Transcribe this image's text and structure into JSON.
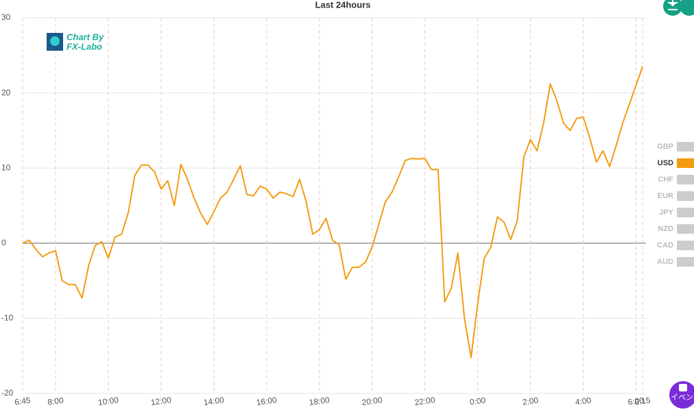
{
  "chart_data": {
    "type": "line",
    "title": "Last 24hours",
    "categories": [
      "6:45",
      null,
      null,
      null,
      null,
      "8:00",
      null,
      null,
      null,
      null,
      null,
      null,
      null,
      "10:00",
      null,
      null,
      null,
      null,
      null,
      null,
      null,
      "12:00",
      null,
      null,
      null,
      null,
      null,
      null,
      null,
      "14:00",
      null,
      null,
      null,
      null,
      null,
      null,
      null,
      "16:00",
      null,
      null,
      null,
      null,
      null,
      null,
      null,
      "18:00",
      null,
      null,
      null,
      null,
      null,
      null,
      null,
      "20:00",
      null,
      null,
      null,
      null,
      null,
      null,
      null,
      "22:00",
      null,
      null,
      null,
      null,
      null,
      null,
      null,
      "0:00",
      null,
      null,
      null,
      null,
      null,
      null,
      null,
      "2:00",
      null,
      null,
      null,
      null,
      null,
      null,
      null,
      "4:00",
      null,
      null,
      null,
      null,
      null,
      null,
      null,
      "6:00",
      "6:15"
    ],
    "series": [
      {
        "name": "USD",
        "color": "#f39c12",
        "values": [
          0,
          0.4,
          -0.8,
          -1.8,
          -1.3,
          -1.0,
          -5,
          -5.5,
          -5.5,
          -7.3,
          -3,
          -0.3,
          0.2,
          -2,
          0.8,
          1.2,
          4,
          9,
          10.4,
          10.4,
          9.5,
          7.2,
          8.3,
          5,
          10.5,
          8.5,
          6,
          4,
          2.5,
          4.2,
          6,
          6.8,
          8.5,
          10.3,
          6.5,
          6.3,
          7.6,
          7.2,
          6,
          6.8,
          6.6,
          6.2,
          8.5,
          5.5,
          1.2,
          1.8,
          3.3,
          0.4,
          -0.2,
          -4.8,
          -3.2,
          -3.2,
          -2.5,
          -0.5,
          2.5,
          5.5,
          6.8,
          8.8,
          11,
          11.3,
          11.2,
          11.3,
          9.8,
          9.8,
          -7.8,
          -6,
          -1.3,
          -10,
          -15.2,
          -8,
          -2,
          -0.5,
          3.5,
          2.8,
          0.5,
          3,
          11.5,
          13.8,
          12.3,
          16,
          21.2,
          19,
          16,
          15,
          16.6,
          16.8,
          14,
          10.8,
          12.3,
          10.2,
          13,
          16,
          18.5,
          21,
          23.5
        ]
      }
    ],
    "legend_items": [
      "GBP",
      "USD",
      "CHF",
      "EUR",
      "JPY",
      "NZD",
      "CAD",
      "AUD"
    ],
    "inactive_color": "#cccccc",
    "ylim": [
      -20,
      30
    ],
    "yticks": [
      -20,
      -10,
      0,
      10,
      20,
      30
    ],
    "grid": true,
    "watermark": [
      "Chart By",
      "FX-Labo"
    ]
  },
  "event_button": "イベン"
}
